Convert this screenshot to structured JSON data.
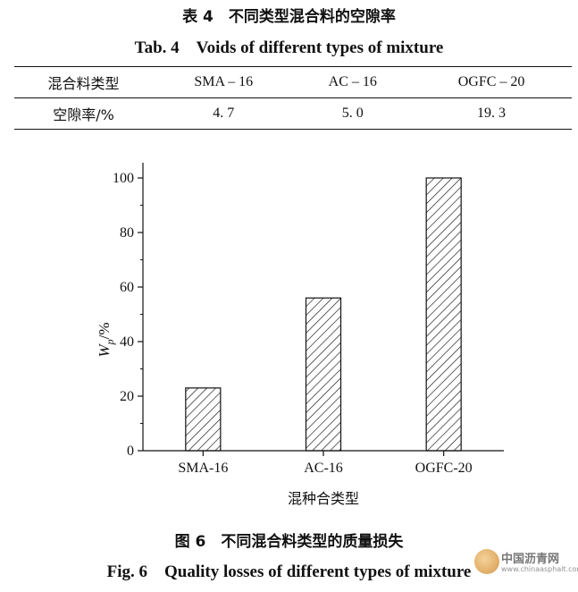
{
  "table": {
    "caption_cn": "表 4　不同类型混合料的空隙率",
    "caption_en": "Tab. 4　Voids of different types of mixture",
    "header_label": "混合料类型",
    "columns": [
      "SMA – 16",
      "AC – 16",
      "OGFC – 20"
    ],
    "row_label": "空隙率/%",
    "values": [
      "4. 7",
      "5. 0",
      "19. 3"
    ]
  },
  "figure": {
    "caption_cn": "图 6　不同混合料类型的质量损失",
    "caption_en": "Fig. 6　Quality losses of different types of mixture"
  },
  "chart_data": {
    "type": "bar",
    "categories": [
      "SMA-16",
      "AC-16",
      "OGFC-20"
    ],
    "values": [
      23,
      56,
      100
    ],
    "xlabel": "混种合类型",
    "ylabel_main": "W",
    "ylabel_sub": "p",
    "ylabel_unit": "/%",
    "ylim": [
      0,
      100
    ],
    "yticks": [
      0,
      20,
      40,
      60,
      80,
      100
    ],
    "bar_fill": "diagonal-hatch",
    "grid": false,
    "legend": "none"
  },
  "watermark": {
    "text": "中国沥青网",
    "url": "www.chinaasphalt.com"
  }
}
